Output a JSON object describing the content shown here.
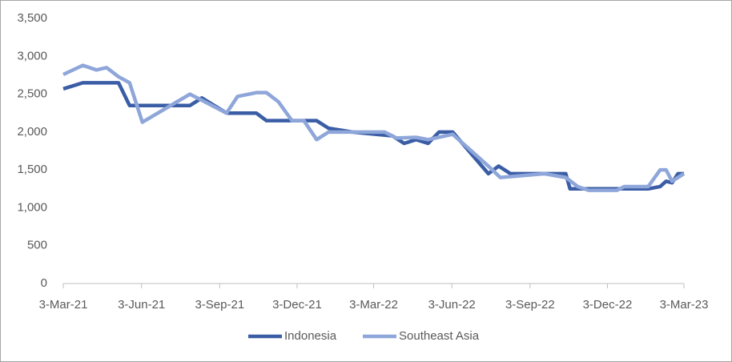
{
  "chart_data": {
    "type": "line",
    "xlim": [
      "2021-03-03",
      "2023-03-03"
    ],
    "xticks": [
      {
        "value": "2021-03-03",
        "label": "3-Mar-21"
      },
      {
        "value": "2021-06-03",
        "label": "3-Jun-21"
      },
      {
        "value": "2021-09-03",
        "label": "3-Sep-21"
      },
      {
        "value": "2021-12-03",
        "label": "3-Dec-21"
      },
      {
        "value": "2022-03-03",
        "label": "3-Mar-22"
      },
      {
        "value": "2022-06-03",
        "label": "3-Jun-22"
      },
      {
        "value": "2022-09-03",
        "label": "3-Sep-22"
      },
      {
        "value": "2022-12-03",
        "label": "3-Dec-22"
      },
      {
        "value": "2023-03-03",
        "label": "3-Mar-23"
      }
    ],
    "ylim": [
      0,
      3500
    ],
    "yticks": [
      0,
      500,
      {
        "value": 1000,
        "label": "1,000"
      },
      {
        "value": 1500,
        "label": "1,500"
      },
      {
        "value": 2000,
        "label": "2,000"
      },
      {
        "value": 2500,
        "label": "2,500"
      },
      {
        "value": 3000,
        "label": "3,000"
      },
      {
        "value": 3500,
        "label": "3,500"
      }
    ],
    "grid": false,
    "legend": "bottom",
    "series": [
      {
        "name": "Indonesia",
        "color": "#3a5da6",
        "x": [
          "2021-03-03",
          "2021-03-26",
          "2021-05-07",
          "2021-05-20",
          "2021-07-30",
          "2021-08-13",
          "2021-09-11",
          "2021-10-16",
          "2021-10-28",
          "2021-12-26",
          "2022-01-09",
          "2022-02-06",
          "2022-03-25",
          "2022-04-08",
          "2022-04-22",
          "2022-05-06",
          "2022-05-19",
          "2022-06-04",
          "2022-07-16",
          "2022-07-28",
          "2022-08-11",
          "2022-10-15",
          "2022-10-20",
          "2022-11-11",
          "2023-01-20",
          "2023-02-03",
          "2023-02-10",
          "2023-02-17",
          "2023-02-24",
          "2023-03-03"
        ],
        "values": [
          2570,
          2650,
          2650,
          2350,
          2350,
          2450,
          2250,
          2250,
          2150,
          2150,
          2050,
          2000,
          1950,
          1850,
          1900,
          1850,
          2000,
          2000,
          1450,
          1550,
          1450,
          1450,
          1250,
          1250,
          1250,
          1280,
          1350,
          1330,
          1450,
          1450
        ]
      },
      {
        "name": "Southeast Asia",
        "color": "#8ea6d9",
        "x": [
          "2021-03-03",
          "2021-03-26",
          "2021-04-11",
          "2021-04-23",
          "2021-05-07",
          "2021-05-20",
          "2021-06-04",
          "2021-07-30",
          "2021-08-13",
          "2021-09-11",
          "2021-09-24",
          "2021-10-16",
          "2021-10-28",
          "2021-11-11",
          "2021-11-27",
          "2021-12-11",
          "2021-12-26",
          "2022-01-09",
          "2022-03-16",
          "2022-03-30",
          "2022-04-22",
          "2022-05-06",
          "2022-06-04",
          "2022-07-16",
          "2022-07-30",
          "2022-09-20",
          "2022-10-15",
          "2022-10-29",
          "2022-11-11",
          "2022-12-14",
          "2022-12-23",
          "2023-01-20",
          "2023-02-03",
          "2023-02-10",
          "2023-02-17",
          "2023-03-03"
        ],
        "values": [
          2760,
          2880,
          2820,
          2850,
          2730,
          2650,
          2130,
          2500,
          2420,
          2250,
          2470,
          2520,
          2520,
          2400,
          2150,
          2150,
          1900,
          2000,
          2000,
          1920,
          1930,
          1900,
          1970,
          1550,
          1400,
          1450,
          1400,
          1280,
          1230,
          1230,
          1280,
          1280,
          1500,
          1500,
          1350,
          1450
        ]
      }
    ]
  }
}
